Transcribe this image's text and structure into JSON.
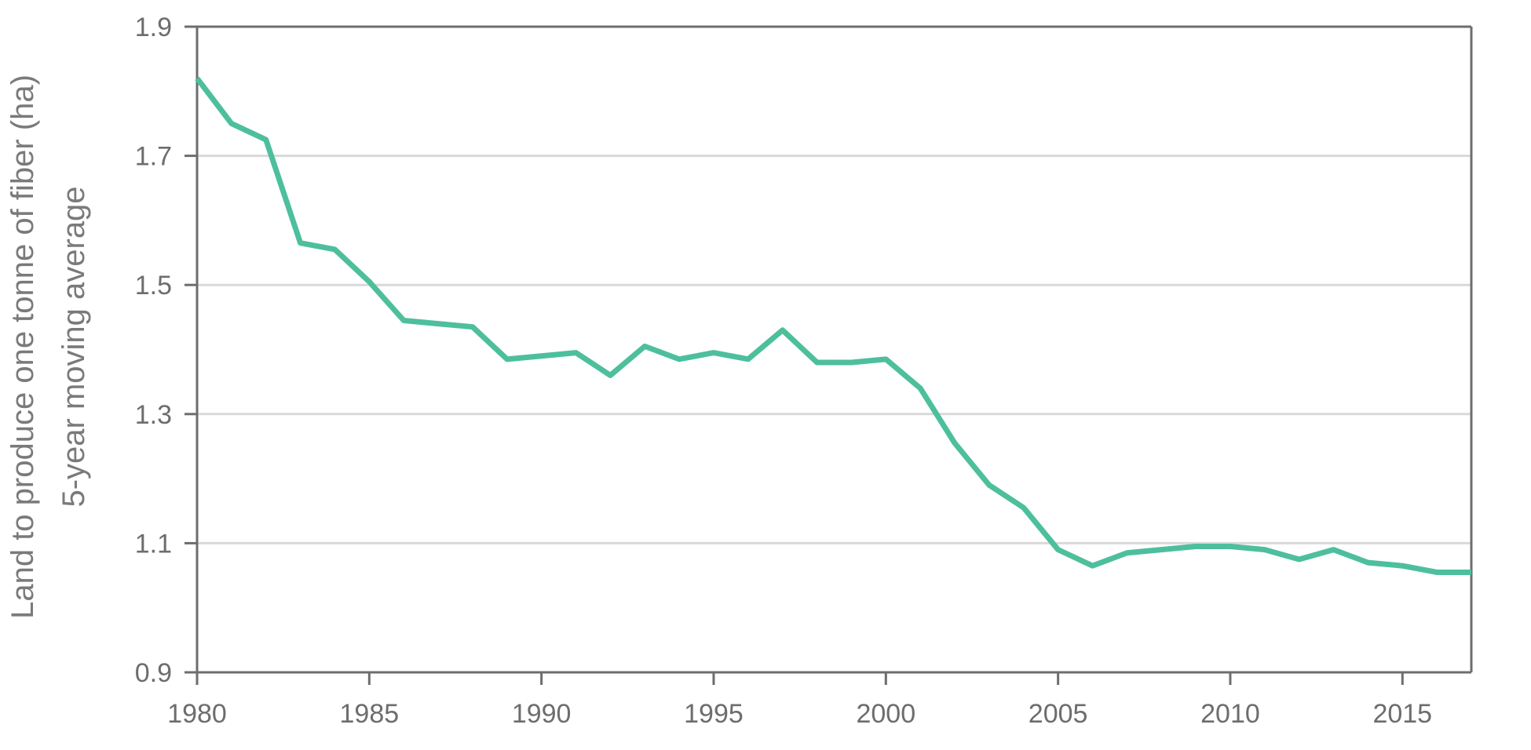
{
  "chart_data": {
    "type": "line",
    "title": "",
    "xlabel": "",
    "ylabel_lines": [
      "Land to produce one tonne of fiber (ha)",
      "5-year moving average"
    ],
    "xlim": [
      1980,
      2017
    ],
    "ylim": [
      0.9,
      1.9
    ],
    "xticks": [
      1980,
      1985,
      1990,
      1995,
      2000,
      2005,
      2010,
      2015
    ],
    "yticks": [
      0.9,
      1.1,
      1.3,
      1.5,
      1.7,
      1.9
    ],
    "ytick_labels": [
      "0.9",
      "1.1",
      "1.3",
      "1.5",
      "1.7",
      "1.9"
    ],
    "grid": "horizontal",
    "series": [
      {
        "color": "#4dbf9c",
        "x": [
          1980,
          1981,
          1982,
          1983,
          1984,
          1985,
          1986,
          1987,
          1988,
          1989,
          1990,
          1991,
          1992,
          1993,
          1994,
          1995,
          1996,
          1997,
          1998,
          1999,
          2000,
          2001,
          2002,
          2003,
          2004,
          2005,
          2006,
          2007,
          2008,
          2009,
          2010,
          2011,
          2012,
          2013,
          2014,
          2015,
          2016,
          2017
        ],
        "y": [
          1.82,
          1.75,
          1.725,
          1.565,
          1.555,
          1.505,
          1.445,
          1.44,
          1.435,
          1.385,
          1.39,
          1.395,
          1.36,
          1.405,
          1.385,
          1.395,
          1.385,
          1.43,
          1.38,
          1.38,
          1.385,
          1.34,
          1.255,
          1.19,
          1.155,
          1.09,
          1.065,
          1.085,
          1.09,
          1.095,
          1.095,
          1.09,
          1.075,
          1.09,
          1.07,
          1.065,
          1.055,
          1.055
        ]
      }
    ]
  },
  "colors": {
    "line": "#4dbf9c",
    "grid": "#d9d9d9",
    "axis": "#6d6d6d",
    "tick_text": "#6d6d6d",
    "axis_title": "#7a7a7a"
  }
}
